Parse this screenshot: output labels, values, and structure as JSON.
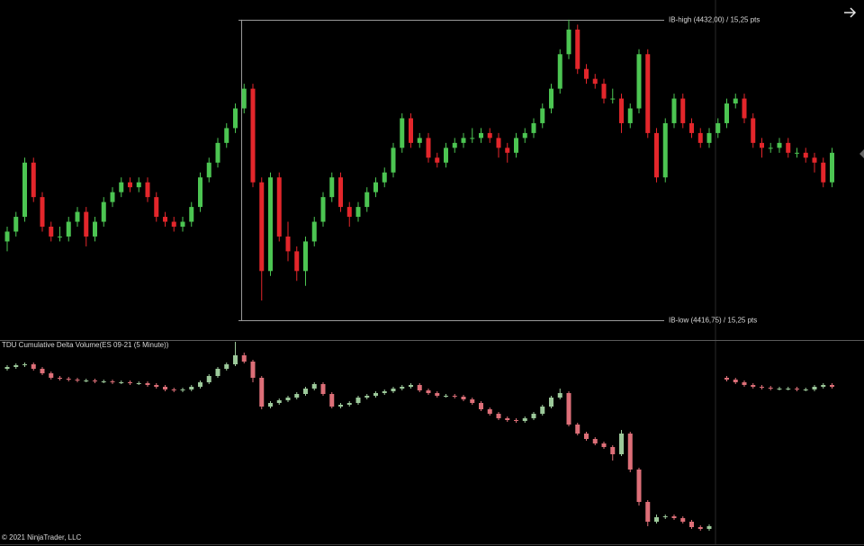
{
  "chart_data": [
    {
      "type": "candlestick",
      "up_color": "#4cc552",
      "down_color": "#e3262b",
      "ylim": [
        4415.75,
        4433
      ],
      "levels": [
        {
          "value": 4432,
          "label": "IB-high (4432,00) / 15,25 pts"
        },
        {
          "value": 4416.75,
          "label": "IB-low (4416,75) / 15,25 pts"
        }
      ],
      "ohlc": [
        [
          4420.75,
          4421.5,
          4420.25,
          4421.25
        ],
        [
          4421.25,
          4422.25,
          4421.0,
          4422.0
        ],
        [
          4422.0,
          4425.0,
          4421.75,
          4424.75
        ],
        [
          4424.75,
          4425.0,
          4422.75,
          4423.0
        ],
        [
          4423.0,
          4423.25,
          4421.25,
          4421.5
        ],
        [
          4421.5,
          4421.75,
          4420.75,
          4421.0
        ],
        [
          4421.0,
          4421.5,
          4420.75,
          4421.0
        ],
        [
          4421.0,
          4422.0,
          4420.75,
          4421.75
        ],
        [
          4421.75,
          4422.5,
          4421.5,
          4422.25
        ],
        [
          4422.25,
          4422.5,
          4420.5,
          4421.0
        ],
        [
          4421.0,
          4422.0,
          4420.75,
          4421.75
        ],
        [
          4421.75,
          4423.0,
          4421.5,
          4422.75
        ],
        [
          4422.75,
          4423.5,
          4422.5,
          4423.25
        ],
        [
          4423.25,
          4424.0,
          4423.0,
          4423.75
        ],
        [
          4423.75,
          4424.0,
          4423.25,
          4423.5
        ],
        [
          4423.5,
          4424.0,
          4423.25,
          4423.75
        ],
        [
          4423.75,
          4424.0,
          4422.75,
          4423.0
        ],
        [
          4423.0,
          4423.25,
          4421.75,
          4422.0
        ],
        [
          4422.0,
          4422.25,
          4421.5,
          4421.75
        ],
        [
          4421.75,
          4422.0,
          4421.25,
          4421.5
        ],
        [
          4421.5,
          4422.0,
          4421.25,
          4421.75
        ],
        [
          4421.75,
          4422.75,
          4421.5,
          4422.5
        ],
        [
          4422.5,
          4424.25,
          4422.25,
          4424.0
        ],
        [
          4424.0,
          4425.0,
          4423.75,
          4424.75
        ],
        [
          4424.75,
          4426.0,
          4424.5,
          4425.75
        ],
        [
          4425.75,
          4426.75,
          4425.5,
          4426.5
        ],
        [
          4426.5,
          4427.75,
          4426.25,
          4427.5
        ],
        [
          4427.5,
          4428.75,
          4427.25,
          4428.5
        ],
        [
          4428.5,
          4428.75,
          4423.5,
          4423.75
        ],
        [
          4423.75,
          4424.0,
          4417.75,
          4419.25
        ],
        [
          4419.25,
          4424.25,
          4419.0,
          4424.0
        ],
        [
          4424.0,
          4424.25,
          4420.75,
          4421.0
        ],
        [
          4421.0,
          4421.75,
          4419.75,
          4420.25
        ],
        [
          4420.25,
          4420.5,
          4418.75,
          4419.25
        ],
        [
          4419.25,
          4421.0,
          4418.5,
          4420.75
        ],
        [
          4420.75,
          4422.0,
          4420.5,
          4421.75
        ],
        [
          4421.75,
          4423.25,
          4421.5,
          4423.0
        ],
        [
          4423.0,
          4424.25,
          4422.75,
          4424.0
        ],
        [
          4424.0,
          4424.25,
          4422.25,
          4422.5
        ],
        [
          4422.5,
          4422.75,
          4421.5,
          4422.0
        ],
        [
          4422.0,
          4422.75,
          4421.75,
          4422.5
        ],
        [
          4422.5,
          4423.5,
          4422.25,
          4423.25
        ],
        [
          4423.25,
          4424.0,
          4423.0,
          4423.75
        ],
        [
          4423.75,
          4424.5,
          4423.5,
          4424.25
        ],
        [
          4424.25,
          4425.75,
          4424.0,
          4425.5
        ],
        [
          4425.5,
          4427.25,
          4425.25,
          4427.0
        ],
        [
          4427.0,
          4427.25,
          4425.5,
          4425.75
        ],
        [
          4425.75,
          4426.25,
          4425.5,
          4426.0
        ],
        [
          4426.0,
          4426.25,
          4424.75,
          4425.0
        ],
        [
          4425.0,
          4425.25,
          4424.5,
          4424.75
        ],
        [
          4424.75,
          4425.75,
          4424.5,
          4425.5
        ],
        [
          4425.5,
          4426.0,
          4425.25,
          4425.75
        ],
        [
          4425.75,
          4426.25,
          4425.5,
          4426.0
        ],
        [
          4426.0,
          4426.5,
          4425.75,
          4426.0
        ],
        [
          4426.0,
          4426.5,
          4425.75,
          4426.25
        ],
        [
          4426.25,
          4426.5,
          4425.75,
          4426.0
        ],
        [
          4426.0,
          4426.25,
          4425.0,
          4425.5
        ],
        [
          4425.5,
          4425.75,
          4424.75,
          4425.25
        ],
        [
          4425.25,
          4426.25,
          4425.0,
          4426.0
        ],
        [
          4426.0,
          4426.5,
          4425.75,
          4426.25
        ],
        [
          4426.25,
          4427.0,
          4426.0,
          4426.75
        ],
        [
          4426.75,
          4427.75,
          4426.5,
          4427.5
        ],
        [
          4427.5,
          4428.75,
          4427.25,
          4428.5
        ],
        [
          4428.5,
          4430.5,
          4428.25,
          4430.25
        ],
        [
          4430.25,
          4432.0,
          4430.0,
          4431.5
        ],
        [
          4431.5,
          4431.75,
          4429.25,
          4429.5
        ],
        [
          4429.5,
          4429.75,
          4428.75,
          4429.0
        ],
        [
          4429.0,
          4429.25,
          4428.5,
          4428.75
        ],
        [
          4428.75,
          4429.0,
          4427.75,
          4428.0
        ],
        [
          4428.0,
          4428.5,
          4427.75,
          4428.0
        ],
        [
          4428.0,
          4428.25,
          4426.25,
          4426.75
        ],
        [
          4426.75,
          4427.75,
          4426.5,
          4427.5
        ],
        [
          4427.5,
          4430.5,
          4427.25,
          4430.25
        ],
        [
          4430.25,
          4430.5,
          4426.0,
          4426.25
        ],
        [
          4426.25,
          4426.5,
          4423.75,
          4424.0
        ],
        [
          4424.0,
          4427.0,
          4423.75,
          4426.75
        ],
        [
          4426.75,
          4428.25,
          4426.5,
          4428.0
        ],
        [
          4428.0,
          4428.25,
          4426.5,
          4426.75
        ],
        [
          4426.75,
          4427.0,
          4426.0,
          4426.25
        ],
        [
          4426.25,
          4426.5,
          4425.5,
          4425.75
        ],
        [
          4425.75,
          4426.5,
          4425.5,
          4426.25
        ],
        [
          4426.25,
          4427.0,
          4426.0,
          4426.75
        ],
        [
          4426.75,
          4428.0,
          4426.5,
          4427.75
        ],
        [
          4427.75,
          4428.25,
          4427.5,
          4428.0
        ],
        [
          4428.0,
          4428.25,
          4426.75,
          4427.0
        ],
        [
          4427.0,
          4427.25,
          4425.5,
          4425.75
        ],
        [
          4425.75,
          4426.0,
          4425.0,
          4425.5
        ],
        [
          4425.5,
          4425.75,
          4425.25,
          4425.5
        ],
        [
          4425.5,
          4426.0,
          4425.25,
          4425.75
        ],
        [
          4425.75,
          4426.0,
          4425.0,
          4425.25
        ],
        [
          4425.25,
          4425.5,
          4425.0,
          4425.25
        ],
        [
          4425.25,
          4425.5,
          4424.75,
          4425.0
        ],
        [
          4425.0,
          4425.25,
          4424.25,
          4424.75
        ],
        [
          4424.75,
          4425.0,
          4423.5,
          4423.75
        ],
        [
          4423.75,
          4425.5,
          4423.5,
          4425.25
        ]
      ]
    },
    {
      "type": "candlestick",
      "title": "TDU Cumulative Delta Volume(ES 09-21 (5 Minute))",
      "up_color": "#9cc99a",
      "down_color": "#dd6f78",
      "ylim": [
        -205,
        20
      ],
      "ohlc": [
        [
          -10,
          -6,
          -12,
          -8
        ],
        [
          -8,
          -4,
          -10,
          -6
        ],
        [
          -6,
          -3,
          -8,
          -5
        ],
        [
          -5,
          -3,
          -12,
          -10
        ],
        [
          -10,
          -8,
          -17,
          -15
        ],
        [
          -15,
          -13,
          -22,
          -20
        ],
        [
          -20,
          -18,
          -23,
          -21
        ],
        [
          -21,
          -19,
          -24,
          -22
        ],
        [
          -22,
          -20,
          -25,
          -23
        ],
        [
          -23,
          -21,
          -25,
          -23
        ],
        [
          -23,
          -21,
          -26,
          -24
        ],
        [
          -24,
          -22,
          -26,
          -24
        ],
        [
          -24,
          -22,
          -27,
          -25
        ],
        [
          -25,
          -23,
          -27,
          -25
        ],
        [
          -25,
          -23,
          -28,
          -26
        ],
        [
          -26,
          -24,
          -28,
          -26
        ],
        [
          -26,
          -24,
          -30,
          -28
        ],
        [
          -28,
          -26,
          -32,
          -30
        ],
        [
          -30,
          -28,
          -35,
          -33
        ],
        [
          -33,
          -31,
          -36,
          -34
        ],
        [
          -34,
          -31,
          -36,
          -33
        ],
        [
          -33,
          -28,
          -35,
          -30
        ],
        [
          -30,
          -23,
          -32,
          -25
        ],
        [
          -25,
          -16,
          -27,
          -18
        ],
        [
          -18,
          -8,
          -20,
          -10
        ],
        [
          -10,
          -3,
          -12,
          -5
        ],
        [
          -5,
          20,
          -7,
          5
        ],
        [
          5,
          8,
          -4,
          -2
        ],
        [
          -2,
          0,
          -25,
          -20
        ],
        [
          -20,
          -18,
          -55,
          -52
        ],
        [
          -52,
          -46,
          -54,
          -48
        ],
        [
          -48,
          -43,
          -50,
          -45
        ],
        [
          -45,
          -40,
          -47,
          -42
        ],
        [
          -42,
          -36,
          -44,
          -38
        ],
        [
          -38,
          -30,
          -40,
          -32
        ],
        [
          -32,
          -25,
          -34,
          -27
        ],
        [
          -27,
          -25,
          -40,
          -38
        ],
        [
          -38,
          -36,
          -54,
          -52
        ],
        [
          -52,
          -48,
          -54,
          -50
        ],
        [
          -50,
          -46,
          -52,
          -48
        ],
        [
          -48,
          -40,
          -50,
          -42
        ],
        [
          -42,
          -38,
          -44,
          -40
        ],
        [
          -40,
          -35,
          -42,
          -37
        ],
        [
          -37,
          -33,
          -39,
          -35
        ],
        [
          -35,
          -30,
          -37,
          -32
        ],
        [
          -32,
          -28,
          -34,
          -30
        ],
        [
          -30,
          -26,
          -32,
          -28
        ],
        [
          -28,
          -26,
          -36,
          -34
        ],
        [
          -34,
          -32,
          -39,
          -37
        ],
        [
          -37,
          -35,
          -42,
          -40
        ],
        [
          -40,
          -38,
          -42,
          -40
        ],
        [
          -40,
          -38,
          -43,
          -41
        ],
        [
          -41,
          -39,
          -46,
          -44
        ],
        [
          -44,
          -42,
          -50,
          -48
        ],
        [
          -48,
          -46,
          -57,
          -55
        ],
        [
          -55,
          -53,
          -62,
          -60
        ],
        [
          -60,
          -58,
          -67,
          -65
        ],
        [
          -65,
          -63,
          -69,
          -67
        ],
        [
          -67,
          -65,
          -70,
          -68
        ],
        [
          -68,
          -63,
          -70,
          -65
        ],
        [
          -65,
          -58,
          -67,
          -60
        ],
        [
          -60,
          -50,
          -62,
          -52
        ],
        [
          -52,
          -40,
          -54,
          -42
        ],
        [
          -42,
          -32,
          -44,
          -37
        ],
        [
          -37,
          -35,
          -74,
          -72
        ],
        [
          -72,
          -70,
          -84,
          -82
        ],
        [
          -82,
          -80,
          -90,
          -88
        ],
        [
          -88,
          -86,
          -95,
          -93
        ],
        [
          -93,
          -91,
          -99,
          -97
        ],
        [
          -97,
          -95,
          -112,
          -105
        ],
        [
          -105,
          -78,
          -107,
          -82
        ],
        [
          -82,
          -80,
          -125,
          -122
        ],
        [
          -122,
          -120,
          -162,
          -158
        ],
        [
          -158,
          -156,
          -185,
          -180
        ],
        [
          -180,
          -172,
          -182,
          -175
        ],
        [
          -175,
          -172,
          -177,
          -174
        ],
        [
          -174,
          -172,
          -178,
          -176
        ],
        [
          -176,
          -174,
          -182,
          -180
        ],
        [
          -180,
          -178,
          -188,
          -186
        ],
        [
          -186,
          -184,
          -190,
          -188
        ],
        [
          -188,
          -183,
          -190,
          -185
        ],
        null,
        [
          -20,
          -18,
          -24,
          -22
        ],
        [
          -22,
          -20,
          -27,
          -25
        ],
        [
          -25,
          -23,
          -30,
          -28
        ],
        [
          -28,
          -26,
          -32,
          -30
        ],
        [
          -30,
          -28,
          -33,
          -31
        ],
        [
          -31,
          -29,
          -34,
          -32
        ],
        [
          -32,
          -30,
          -34,
          -32
        ],
        [
          -32,
          -30,
          -34,
          -32
        ],
        [
          -32,
          -30,
          -35,
          -33
        ],
        [
          -33,
          -31,
          -35,
          -33
        ],
        [
          -33,
          -28,
          -35,
          -30
        ],
        [
          -30,
          -26,
          -32,
          -28
        ],
        [
          -28,
          -26,
          -32,
          -30
        ]
      ]
    }
  ],
  "footer": "© 2021 NinjaTrader, LLC"
}
